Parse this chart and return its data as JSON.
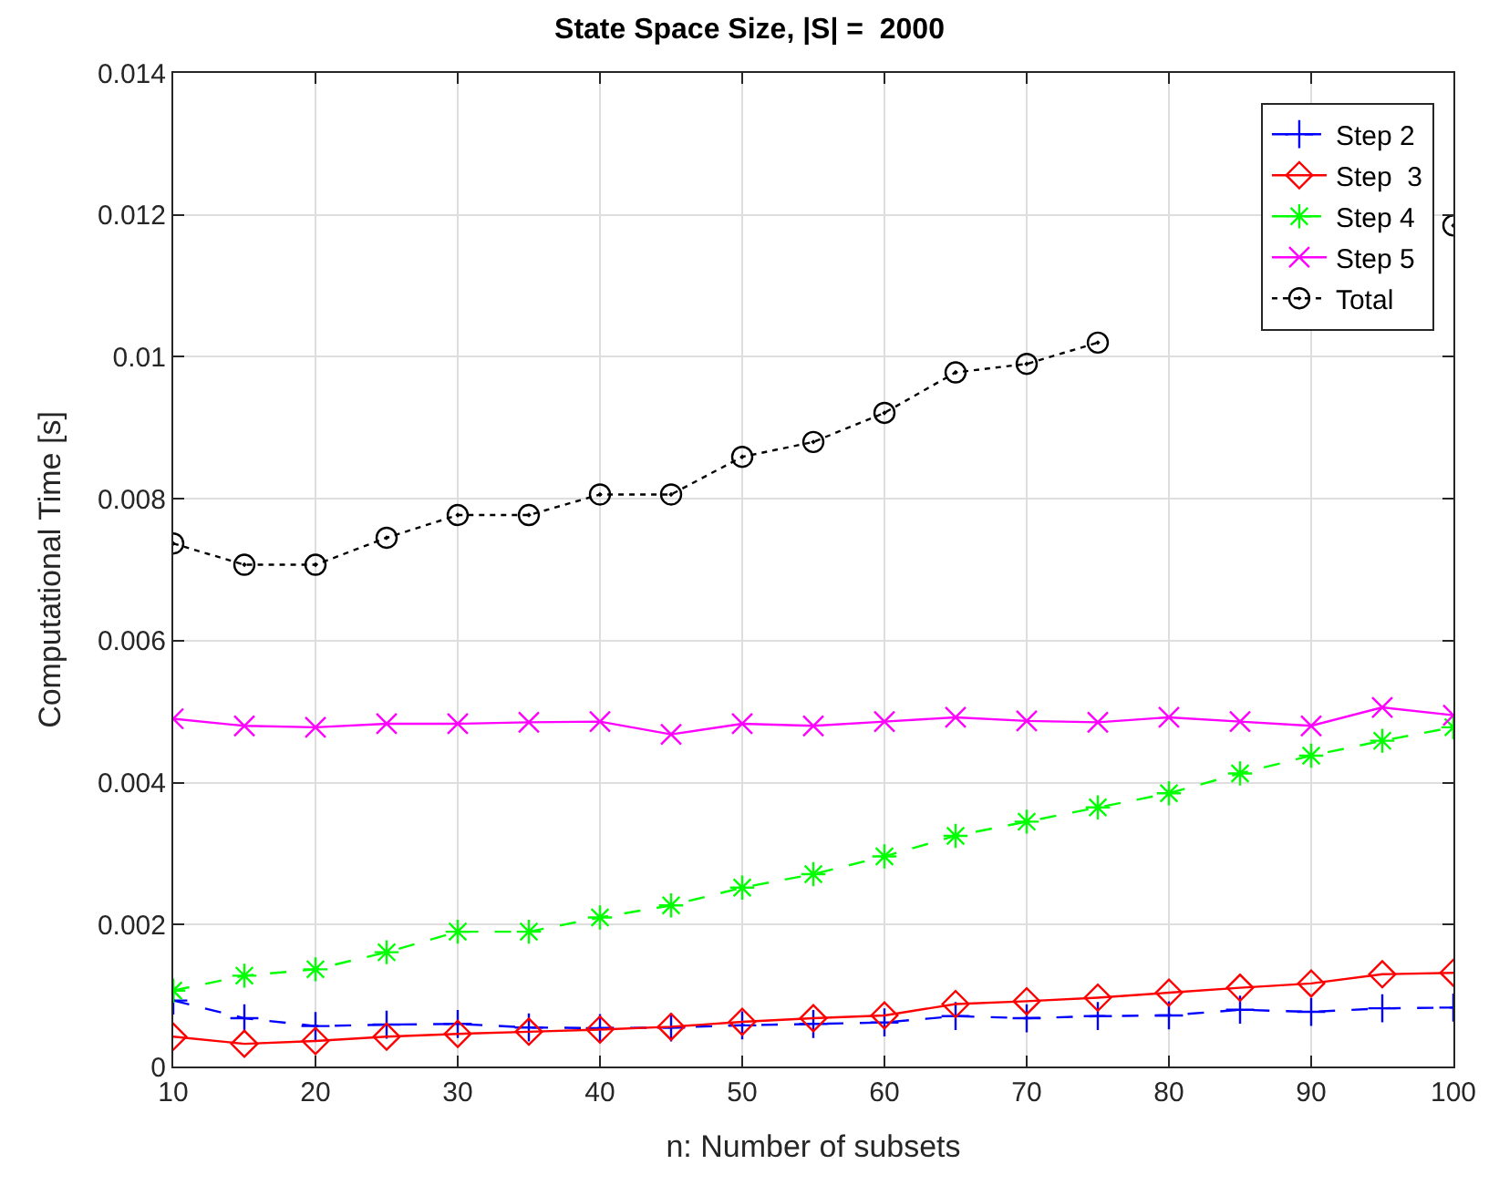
{
  "chart_data": {
    "type": "line",
    "title": "State Space Size, |S| =  2000",
    "xlabel": "n: Number of subsets",
    "ylabel": "Computational Time [s]",
    "x": [
      10,
      15,
      20,
      25,
      30,
      35,
      40,
      45,
      50,
      55,
      60,
      65,
      70,
      75,
      80,
      85,
      90,
      95,
      100
    ],
    "xlim": [
      10,
      100
    ],
    "xticks": [
      10,
      20,
      30,
      40,
      50,
      60,
      70,
      80,
      90,
      100
    ],
    "ylim": [
      0,
      0.014
    ],
    "yticks": [
      0,
      0.002,
      0.004,
      0.006,
      0.008,
      0.01,
      0.012,
      0.014
    ],
    "grid": true,
    "legend": "top right",
    "series": [
      {
        "name": "Step 2",
        "color": "#0000ff",
        "marker": "plus",
        "line_style": "dashed",
        "values": [
          0.00093,
          0.00068,
          0.00057,
          0.00059,
          0.0006,
          0.00055,
          0.00054,
          0.00055,
          0.00058,
          0.0006,
          0.00062,
          0.00071,
          0.00068,
          0.00071,
          0.00072,
          0.0008,
          0.00077,
          0.00082,
          0.00083
        ]
      },
      {
        "name": "Step  3",
        "color": "#ff0000",
        "marker": "diamond",
        "line_style": "solid",
        "values": [
          0.00042,
          0.00032,
          0.00036,
          0.00042,
          0.00046,
          0.00049,
          0.00052,
          0.00056,
          0.00063,
          0.00068,
          0.00072,
          0.00088,
          0.00092,
          0.00097,
          0.00104,
          0.00111,
          0.00117,
          0.0013,
          0.00132
        ]
      },
      {
        "name": "Step 4",
        "color": "#00ff00",
        "marker": "cross",
        "line_style": "dashed",
        "values": [
          0.00107,
          0.00128,
          0.00137,
          0.00161,
          0.0019,
          0.0019,
          0.0021,
          0.00227,
          0.00252,
          0.00271,
          0.00296,
          0.00325,
          0.00345,
          0.00365,
          0.00385,
          0.00413,
          0.00438,
          0.00459,
          0.00478
        ]
      },
      {
        "name": "Step 5",
        "color": "#ff00ff",
        "marker": "x",
        "line_style": "solid",
        "values": [
          0.0049,
          0.0048,
          0.00478,
          0.00483,
          0.00483,
          0.00485,
          0.00486,
          0.00468,
          0.00483,
          0.0048,
          0.00486,
          0.00492,
          0.00487,
          0.00485,
          0.00492,
          0.00486,
          0.0048,
          0.00506,
          0.00495
        ]
      },
      {
        "name": "Total",
        "color": "#000000",
        "marker": "circle",
        "line_style": "dotted",
        "values": [
          0.00737,
          0.00707,
          0.00707,
          0.00745,
          0.00777,
          0.00777,
          0.00806,
          0.00806,
          0.00859,
          0.0088,
          0.00921,
          0.00978,
          0.0099,
          0.0102,
          null,
          null,
          null,
          null,
          0.01185
        ]
      }
    ]
  }
}
